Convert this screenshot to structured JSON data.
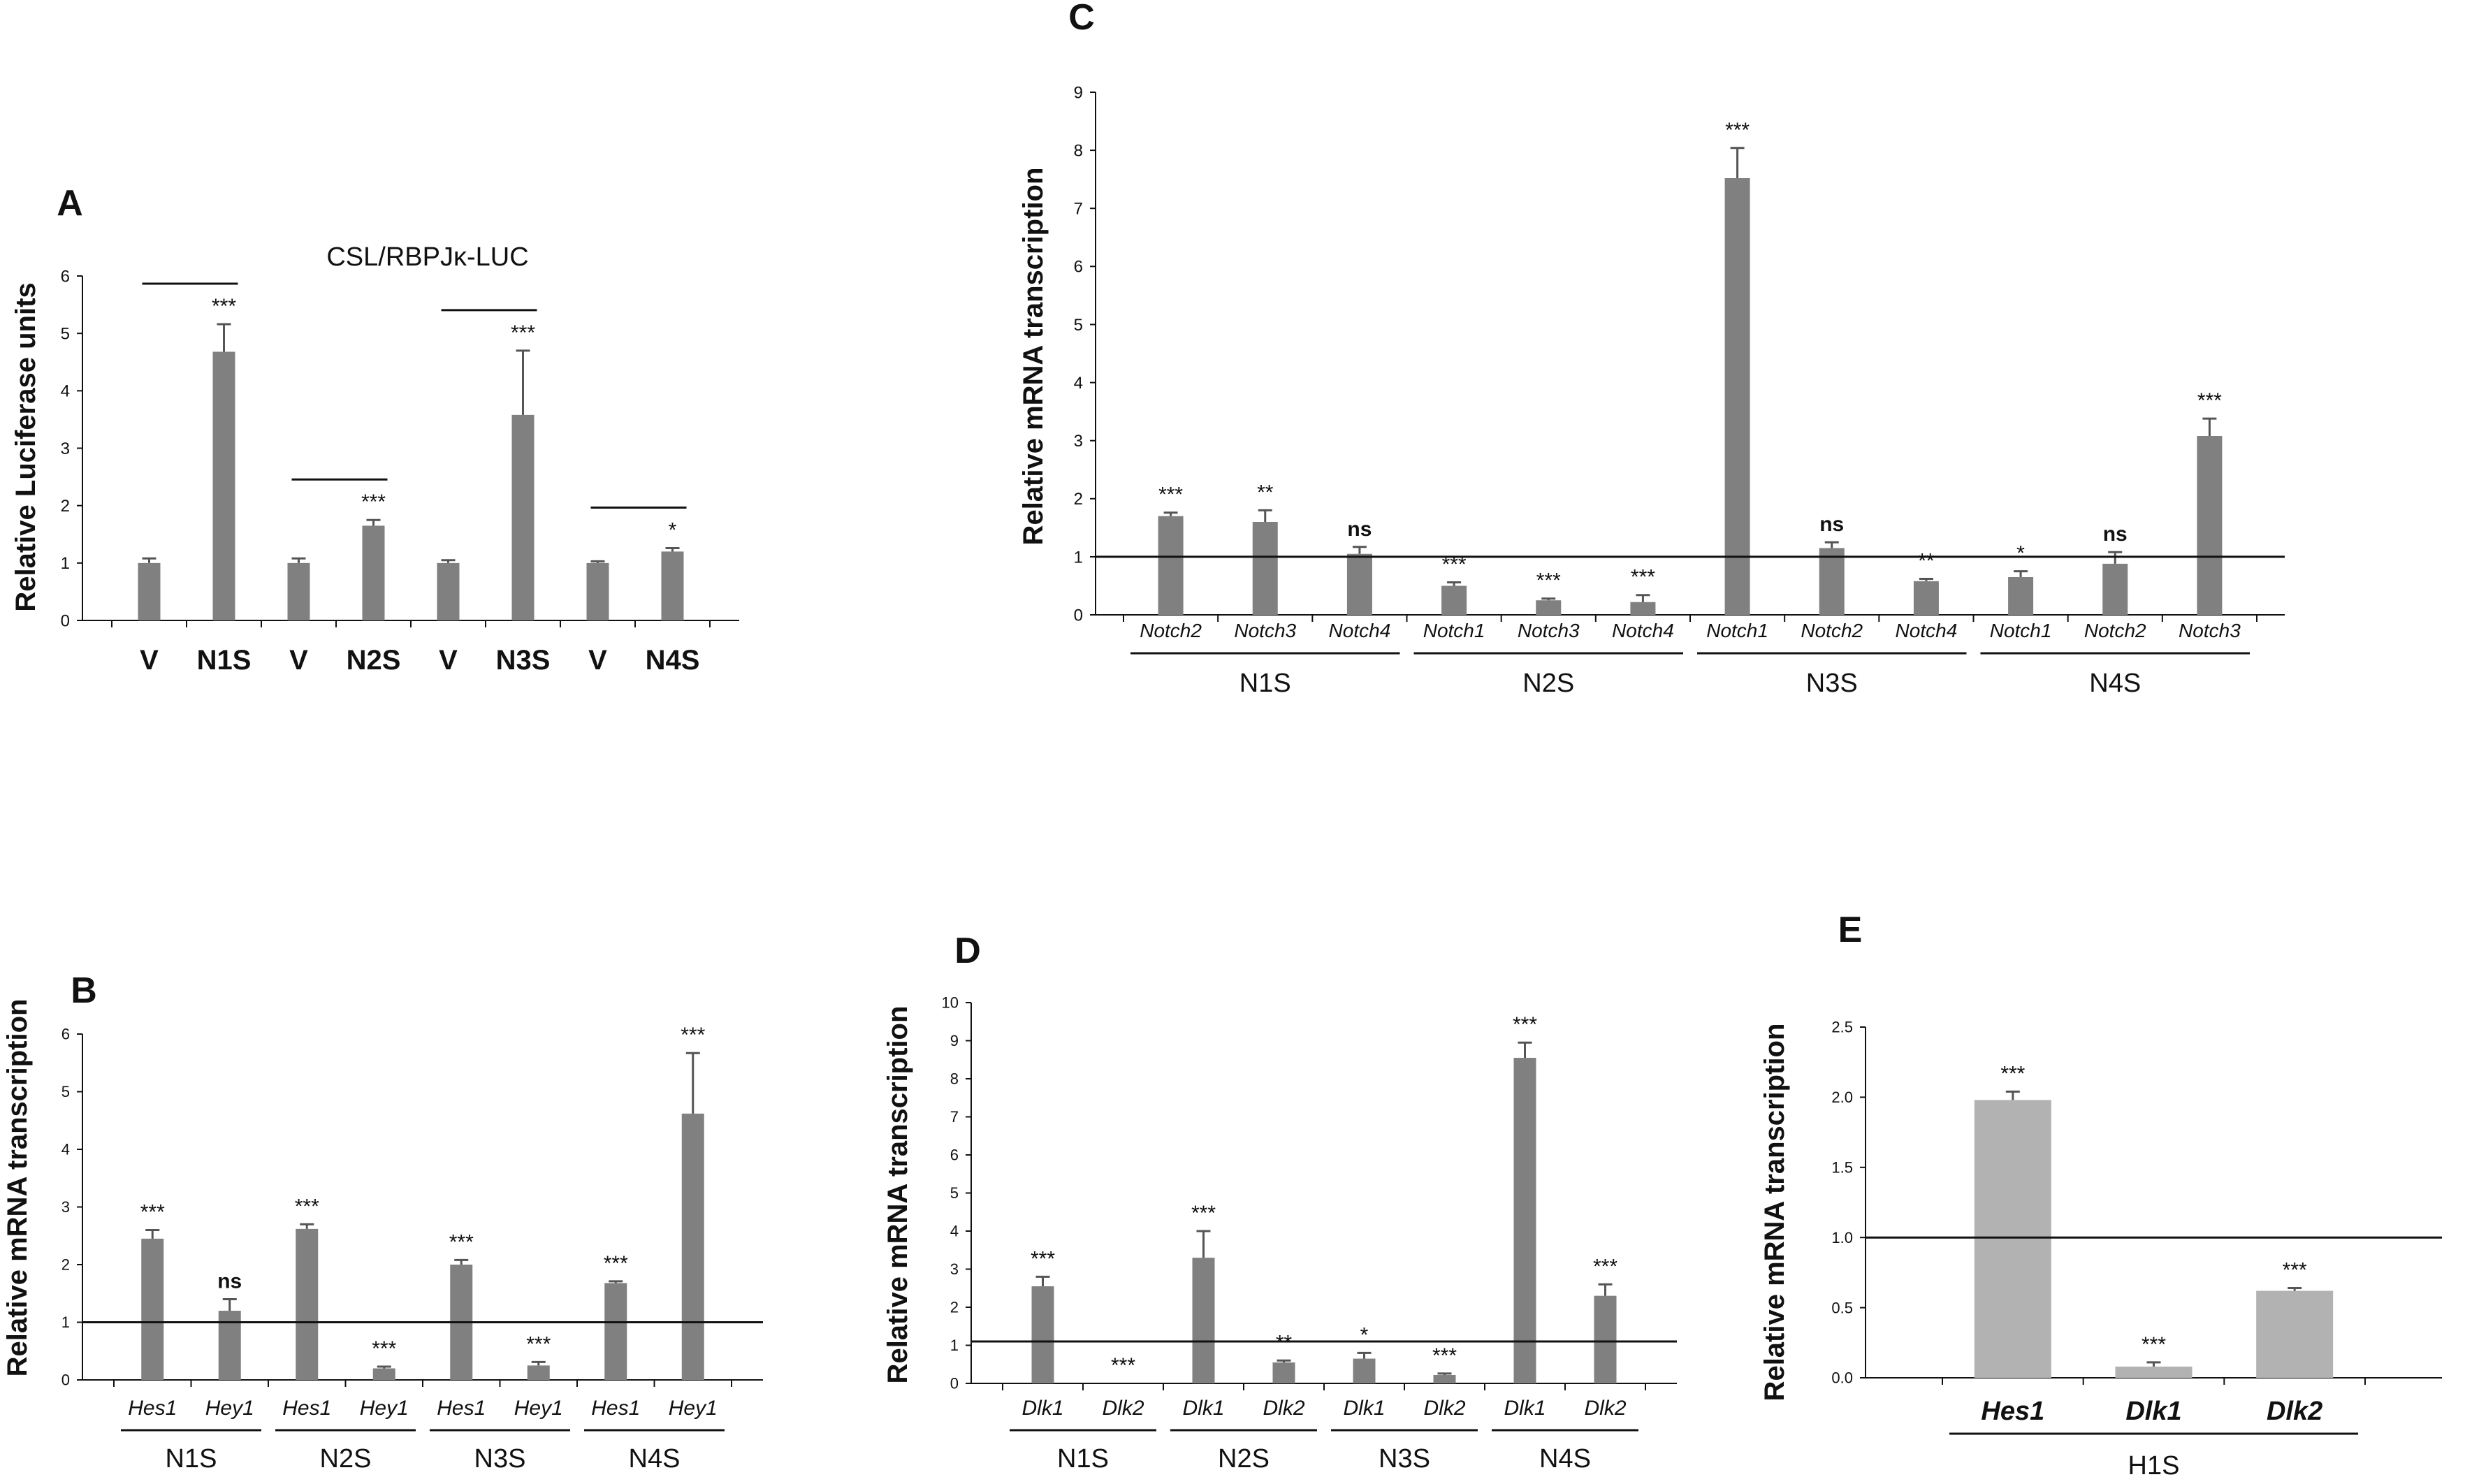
{
  "figure": {
    "colors": {
      "bar_dark": "#808080",
      "bar_light": "#b2b2b2",
      "ink": "#111111"
    }
  },
  "chart_data": [
    {
      "id": "A",
      "type": "bar",
      "panel_label": "A",
      "title": "CSL/RBPJκ-LUC",
      "ylabel": "Relative Luciferase units",
      "ylim": [
        0,
        6
      ],
      "yticks": [
        "0",
        "1",
        "2",
        "3",
        "4",
        "5",
        "6"
      ],
      "categories": [
        "V",
        "N1S",
        "V",
        "N2S",
        "V",
        "N3S",
        "V",
        "N4S"
      ],
      "values": [
        1.0,
        4.68,
        1.0,
        1.65,
        1.0,
        3.58,
        1.0,
        1.2
      ],
      "errors": [
        0.08,
        0.48,
        0.08,
        0.1,
        0.05,
        1.12,
        0.03,
        0.06
      ],
      "significance": [
        "",
        "***",
        "",
        "***",
        "",
        "***",
        "",
        "*"
      ],
      "comparison_lines": [
        [
          0,
          1
        ],
        [
          2,
          3
        ],
        [
          4,
          5
        ],
        [
          6,
          7
        ]
      ]
    },
    {
      "id": "B",
      "type": "bar",
      "panel_label": "B",
      "ylabel": "Relative mRNA transcription",
      "ylim": [
        0,
        6
      ],
      "yticks": [
        "0",
        "1",
        "2",
        "3",
        "4",
        "5",
        "6"
      ],
      "reference_line": 1,
      "categories": [
        "Hes1",
        "Hey1",
        "Hes1",
        "Hey1",
        "Hes1",
        "Hey1",
        "Hes1",
        "Hey1"
      ],
      "values": [
        2.45,
        1.2,
        2.62,
        0.2,
        2.0,
        0.25,
        1.68,
        4.62
      ],
      "errors": [
        0.15,
        0.2,
        0.08,
        0.03,
        0.08,
        0.06,
        0.03,
        1.05
      ],
      "significance": [
        "***",
        "ns",
        "***",
        "***",
        "***",
        "***",
        "***",
        "***"
      ],
      "groups": [
        "N1S",
        "N2S",
        "N3S",
        "N4S"
      ]
    },
    {
      "id": "C",
      "type": "bar",
      "panel_label": "C",
      "ylabel": "Relative mRNA transcription",
      "ylim": [
        0,
        9
      ],
      "yticks": [
        "0",
        "1",
        "2",
        "3",
        "4",
        "5",
        "6",
        "7",
        "8",
        "9"
      ],
      "reference_line": 1,
      "categories": [
        "Notch2",
        "Notch3",
        "Notch4",
        "Notch1",
        "Notch3",
        "Notch4",
        "Notch1",
        "Notch2",
        "Notch4",
        "Notch1",
        "Notch2",
        "Notch3"
      ],
      "values": [
        1.7,
        1.6,
        1.05,
        0.5,
        0.25,
        0.22,
        7.52,
        1.15,
        0.58,
        0.65,
        0.88,
        3.08
      ],
      "errors": [
        0.06,
        0.2,
        0.12,
        0.06,
        0.03,
        0.12,
        0.52,
        0.1,
        0.04,
        0.1,
        0.2,
        0.3
      ],
      "significance": [
        "***",
        "**",
        "ns",
        "***",
        "***",
        "***",
        "***",
        "ns",
        "**",
        "*",
        "ns",
        "***"
      ],
      "groups": [
        "N1S",
        "N2S",
        "N3S",
        "N4S"
      ]
    },
    {
      "id": "D",
      "type": "bar",
      "panel_label": "D",
      "ylabel": "Relative mRNA transcription",
      "ylim": [
        0,
        10
      ],
      "yticks": [
        "0",
        "1",
        "2",
        "3",
        "4",
        "5",
        "6",
        "7",
        "8",
        "9",
        "10"
      ],
      "reference_line": 1.1,
      "categories": [
        "Dlk1",
        "Dlk2",
        "Dlk1",
        "Dlk2",
        "Dlk1",
        "Dlk2",
        "Dlk1",
        "Dlk2"
      ],
      "values": [
        2.55,
        0.0,
        3.3,
        0.55,
        0.65,
        0.22,
        8.55,
        2.3
      ],
      "errors": [
        0.25,
        0.0,
        0.7,
        0.05,
        0.15,
        0.04,
        0.4,
        0.3
      ],
      "significance": [
        "***",
        "***",
        "***",
        "**",
        "*",
        "***",
        "***",
        "***"
      ],
      "groups": [
        "N1S",
        "N2S",
        "N3S",
        "N4S"
      ]
    },
    {
      "id": "E",
      "type": "bar",
      "panel_label": "E",
      "ylabel": "Relative mRNA transcription",
      "ylim": [
        0,
        2.5
      ],
      "yticks": [
        "0.0",
        "0.5",
        "1.0",
        "1.5",
        "2.0",
        "2.5"
      ],
      "reference_line": 1.0,
      "categories": [
        "Hes1",
        "Dlk1",
        "Dlk2"
      ],
      "values": [
        1.98,
        0.08,
        0.62
      ],
      "errors": [
        0.06,
        0.03,
        0.02
      ],
      "significance": [
        "***",
        "***",
        "***"
      ],
      "groups": [
        "H1S"
      ]
    }
  ]
}
